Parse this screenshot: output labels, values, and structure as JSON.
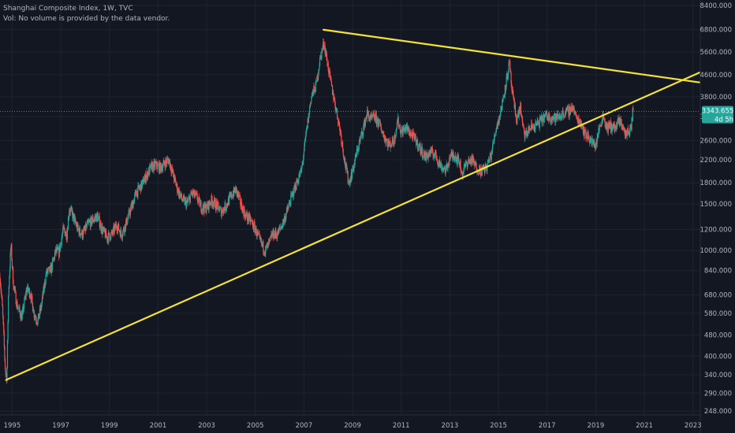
{
  "header": {
    "title": "Shanghai Composite Index, 1W, TVC",
    "volume_note": "Vol: No volume is provided by the data vendor."
  },
  "price_label": {
    "value": "3343.655",
    "countdown": "4d 5h"
  },
  "colors": {
    "background": "#131722",
    "grid": "#1f2331",
    "up": "#26a69a",
    "down": "#ef5350",
    "trendline": "#f5e233",
    "price_badge": "#26a69a",
    "text": "#b2b5be"
  },
  "chart_data": {
    "type": "candlestick",
    "scale": "log",
    "ylim": [
      240,
      8800
    ],
    "xlim": [
      1994.5,
      2023.3
    ],
    "y_ticks": [
      "248.000",
      "290.000",
      "340.000",
      "400.000",
      "480.000",
      "580.000",
      "680.000",
      "840.000",
      "1000.000",
      "1200.000",
      "1500.000",
      "1800.000",
      "2200.000",
      "2600.000",
      "3200.000",
      "3800.000",
      "4600.000",
      "5600.000",
      "6800.000",
      "8400.000"
    ],
    "x_ticks": [
      "1995",
      "1997",
      "1999",
      "2001",
      "2003",
      "2005",
      "2007",
      "2009",
      "2011",
      "2013",
      "2015",
      "2017",
      "2019",
      "2021",
      "2023"
    ],
    "price_path": [
      [
        1994.5,
        800
      ],
      [
        1994.6,
        600
      ],
      [
        1994.72,
        350
      ],
      [
        1994.78,
        330
      ],
      [
        1994.85,
        700
      ],
      [
        1994.95,
        1050
      ],
      [
        1995.05,
        750
      ],
      [
        1995.2,
        620
      ],
      [
        1995.4,
        560
      ],
      [
        1995.6,
        720
      ],
      [
        1995.75,
        690
      ],
      [
        1995.9,
        580
      ],
      [
        1996.05,
        540
      ],
      [
        1996.2,
        620
      ],
      [
        1996.4,
        820
      ],
      [
        1996.6,
        850
      ],
      [
        1996.8,
        1000
      ],
      [
        1996.92,
        980
      ],
      [
        1997.1,
        1200
      ],
      [
        1997.25,
        1150
      ],
      [
        1997.35,
        1450
      ],
      [
        1997.5,
        1350
      ],
      [
        1997.7,
        1200
      ],
      [
        1997.9,
        1150
      ],
      [
        1998.1,
        1250
      ],
      [
        1998.3,
        1300
      ],
      [
        1998.5,
        1350
      ],
      [
        1998.7,
        1200
      ],
      [
        1998.9,
        1120
      ],
      [
        1999.1,
        1150
      ],
      [
        1999.3,
        1250
      ],
      [
        1999.5,
        1150
      ],
      [
        1999.7,
        1280
      ],
      [
        1999.9,
        1450
      ],
      [
        2000.1,
        1650
      ],
      [
        2000.3,
        1750
      ],
      [
        2000.5,
        1900
      ],
      [
        2000.7,
        2050
      ],
      [
        2000.9,
        2100
      ],
      [
        2001.1,
        2050
      ],
      [
        2001.3,
        2150
      ],
      [
        2001.45,
        2200
      ],
      [
        2001.6,
        1950
      ],
      [
        2001.8,
        1700
      ],
      [
        2002.0,
        1550
      ],
      [
        2002.2,
        1500
      ],
      [
        2002.4,
        1650
      ],
      [
        2002.6,
        1580
      ],
      [
        2002.8,
        1450
      ],
      [
        2003.0,
        1450
      ],
      [
        2003.2,
        1550
      ],
      [
        2003.4,
        1480
      ],
      [
        2003.6,
        1400
      ],
      [
        2003.8,
        1480
      ],
      [
        2004.0,
        1600
      ],
      [
        2004.2,
        1700
      ],
      [
        2004.4,
        1500
      ],
      [
        2004.6,
        1350
      ],
      [
        2004.8,
        1300
      ],
      [
        2005.0,
        1200
      ],
      [
        2005.2,
        1080
      ],
      [
        2005.4,
        1000
      ],
      [
        2005.55,
        1050
      ],
      [
        2005.7,
        1150
      ],
      [
        2005.9,
        1150
      ],
      [
        2006.1,
        1250
      ],
      [
        2006.3,
        1400
      ],
      [
        2006.5,
        1600
      ],
      [
        2006.7,
        1800
      ],
      [
        2006.9,
        2000
      ],
      [
        2007.1,
        2800
      ],
      [
        2007.3,
        3800
      ],
      [
        2007.5,
        4200
      ],
      [
        2007.65,
        5200
      ],
      [
        2007.82,
        6100
      ],
      [
        2007.95,
        5200
      ],
      [
        2008.1,
        4300
      ],
      [
        2008.3,
        3500
      ],
      [
        2008.5,
        2800
      ],
      [
        2008.7,
        2100
      ],
      [
        2008.85,
        1800
      ],
      [
        2009.0,
        2000
      ],
      [
        2009.2,
        2400
      ],
      [
        2009.4,
        2800
      ],
      [
        2009.6,
        3300
      ],
      [
        2009.75,
        3100
      ],
      [
        2009.9,
        3200
      ],
      [
        2010.1,
        3000
      ],
      [
        2010.3,
        2700
      ],
      [
        2010.5,
        2500
      ],
      [
        2010.7,
        2600
      ],
      [
        2010.85,
        3100
      ],
      [
        2011.0,
        2800
      ],
      [
        2011.2,
        2900
      ],
      [
        2011.4,
        2750
      ],
      [
        2011.6,
        2600
      ],
      [
        2011.8,
        2400
      ],
      [
        2012.0,
        2250
      ],
      [
        2012.2,
        2350
      ],
      [
        2012.4,
        2300
      ],
      [
        2012.6,
        2100
      ],
      [
        2012.85,
        2000
      ],
      [
        2013.0,
        2250
      ],
      [
        2013.2,
        2300
      ],
      [
        2013.4,
        2150
      ],
      [
        2013.5,
        1950
      ],
      [
        2013.7,
        2150
      ],
      [
        2013.9,
        2200
      ],
      [
        2014.1,
        2050
      ],
      [
        2014.3,
        2000
      ],
      [
        2014.5,
        2050
      ],
      [
        2014.7,
        2300
      ],
      [
        2014.9,
        2900
      ],
      [
        2015.05,
        3200
      ],
      [
        2015.2,
        3800
      ],
      [
        2015.35,
        4500
      ],
      [
        2015.45,
        5100
      ],
      [
        2015.55,
        4000
      ],
      [
        2015.65,
        3500
      ],
      [
        2015.75,
        3100
      ],
      [
        2015.9,
        3500
      ],
      [
        2016.0,
        2900
      ],
      [
        2016.1,
        2700
      ],
      [
        2016.3,
        2900
      ],
      [
        2016.5,
        2950
      ],
      [
        2016.7,
        3050
      ],
      [
        2016.9,
        3200
      ],
      [
        2017.1,
        3200
      ],
      [
        2017.3,
        3150
      ],
      [
        2017.5,
        3200
      ],
      [
        2017.7,
        3300
      ],
      [
        2017.9,
        3350
      ],
      [
        2018.05,
        3500
      ],
      [
        2018.2,
        3150
      ],
      [
        2018.4,
        3050
      ],
      [
        2018.55,
        2750
      ],
      [
        2018.7,
        2700
      ],
      [
        2018.85,
        2550
      ],
      [
        2019.0,
        2500
      ],
      [
        2019.15,
        2900
      ],
      [
        2019.3,
        3250
      ],
      [
        2019.45,
        2900
      ],
      [
        2019.6,
        2950
      ],
      [
        2019.8,
        2900
      ],
      [
        2019.95,
        3050
      ],
      [
        2020.05,
        3050
      ],
      [
        2020.2,
        2750
      ],
      [
        2020.35,
        2800
      ],
      [
        2020.45,
        2900
      ],
      [
        2020.52,
        3300
      ],
      [
        2020.55,
        3343.655
      ]
    ],
    "trendlines": [
      {
        "from": [
          1994.75,
          325
        ],
        "to": [
          2023.3,
          4700
        ]
      },
      {
        "from": [
          2007.8,
          6800
        ],
        "to": [
          2023.3,
          4300
        ]
      }
    ],
    "last_price": 3343.655
  }
}
